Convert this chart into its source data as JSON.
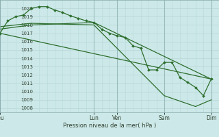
{
  "background_color": "#cce8e8",
  "grid_color_minor": "#b8d8d8",
  "grid_color_major": "#99bbbb",
  "line_color": "#2d6e2d",
  "ylabel": "Pression niveau de la mer( hPa )",
  "ylim": [
    1007.5,
    1021.0
  ],
  "yticks": [
    1008,
    1009,
    1010,
    1011,
    1012,
    1013,
    1014,
    1015,
    1016,
    1017,
    1018,
    1019,
    1020
  ],
  "xtick_labels": [
    "Jeu",
    "Lun",
    "Ven",
    "Sam",
    "Dim"
  ],
  "xtick_positions": [
    0,
    12,
    15,
    21,
    27
  ],
  "xmax": 28,
  "line_detailed": {
    "x": [
      0,
      1,
      2,
      3,
      4,
      5,
      6,
      7,
      8,
      9,
      10,
      11,
      12,
      13,
      14,
      15,
      16,
      17,
      18,
      19,
      20,
      21,
      22,
      23,
      24,
      25,
      26,
      27
    ],
    "y": [
      1017.0,
      1018.5,
      1019.0,
      1019.2,
      1020.0,
      1020.2,
      1020.2,
      1019.8,
      1019.5,
      1019.1,
      1018.8,
      1018.5,
      1018.3,
      1017.5,
      1017.0,
      1016.7,
      1016.5,
      1015.5,
      1015.2,
      1012.6,
      1012.6,
      1013.5,
      1013.5,
      1011.7,
      1011.1,
      1010.5,
      1009.5,
      1011.5
    ]
  },
  "lines_simple": [
    {
      "x": [
        0,
        27
      ],
      "y": [
        1017.0,
        1011.5
      ]
    },
    {
      "x": [
        0,
        4,
        12,
        27
      ],
      "y": [
        1017.5,
        1018.0,
        1018.3,
        1011.5
      ]
    },
    {
      "x": [
        0,
        4,
        12,
        21,
        25,
        27
      ],
      "y": [
        1017.8,
        1018.2,
        1018.0,
        1009.5,
        1008.2,
        1009.0
      ]
    }
  ]
}
